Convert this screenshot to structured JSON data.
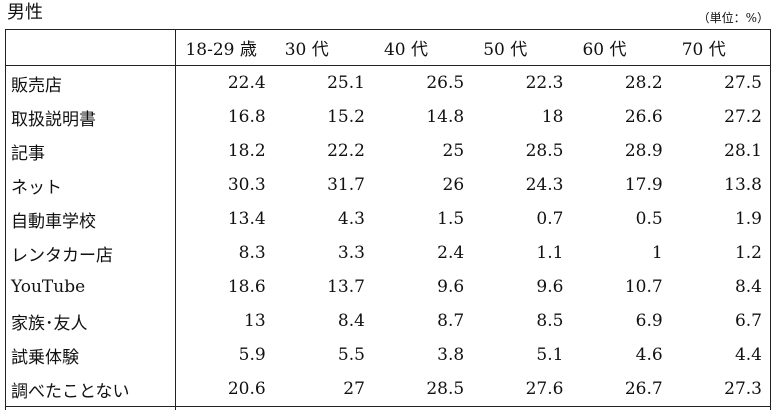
{
  "title": "男性",
  "unit": "（単位：%）",
  "table": {
    "headers": [
      "",
      "18-29 歳",
      "30 代",
      "40 代",
      "50 代",
      "60 代",
      "70 代"
    ],
    "rows": [
      {
        "label": "販売店",
        "values": [
          "22.4",
          "25.1",
          "26.5",
          "22.3",
          "28.2",
          "27.5"
        ]
      },
      {
        "label": "取扱説明書",
        "values": [
          "16.8",
          "15.2",
          "14.8",
          "18",
          "26.6",
          "27.2"
        ]
      },
      {
        "label": "記事",
        "values": [
          "18.2",
          "22.2",
          "25",
          "28.5",
          "28.9",
          "28.1"
        ]
      },
      {
        "label": "ネット",
        "values": [
          "30.3",
          "31.7",
          "26",
          "24.3",
          "17.9",
          "13.8"
        ]
      },
      {
        "label": "自動車学校",
        "values": [
          "13.4",
          "4.3",
          "1.5",
          "0.7",
          "0.5",
          "1.9"
        ]
      },
      {
        "label": "レンタカー店",
        "values": [
          "8.3",
          "3.3",
          "2.4",
          "1.1",
          "1",
          "1.2"
        ]
      },
      {
        "label": "YouTube",
        "values": [
          "18.6",
          "13.7",
          "9.6",
          "9.6",
          "10.7",
          "8.4"
        ]
      },
      {
        "label": "家族･友人",
        "values": [
          "13",
          "8.4",
          "8.7",
          "8.5",
          "6.9",
          "6.7"
        ]
      },
      {
        "label": "試乗体験",
        "values": [
          "5.9",
          "5.5",
          "3.8",
          "5.1",
          "4.6",
          "4.4"
        ]
      },
      {
        "label": "調べたことない",
        "values": [
          "20.6",
          "27",
          "28.5",
          "27.6",
          "26.7",
          "27.3"
        ]
      }
    ]
  }
}
